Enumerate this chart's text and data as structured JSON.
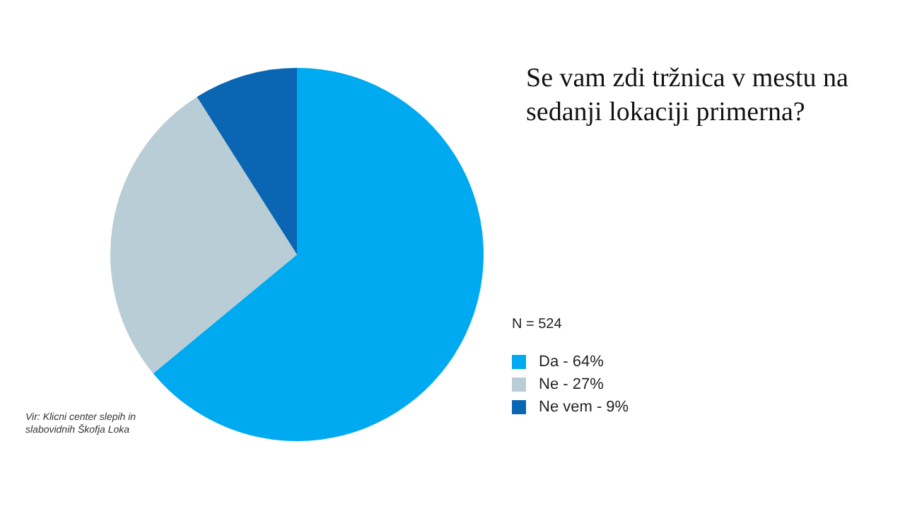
{
  "chart_data": {
    "type": "pie",
    "title": "Se vam zdi tržnica v mestu na sedanji lokaciji primerna?",
    "categories": [
      "Da",
      "Ne",
      "Ne vem"
    ],
    "values": [
      64,
      27,
      9
    ],
    "value_labels": [
      "64%",
      "27%",
      "9%"
    ],
    "colors": [
      "#00aaf0",
      "#b9cdd6",
      "#0a66b2"
    ],
    "legend": "right",
    "annotations": [
      "N = 524",
      "Vir: Klicni center slepih in slabovidnih Škofja Loka"
    ]
  }
}
